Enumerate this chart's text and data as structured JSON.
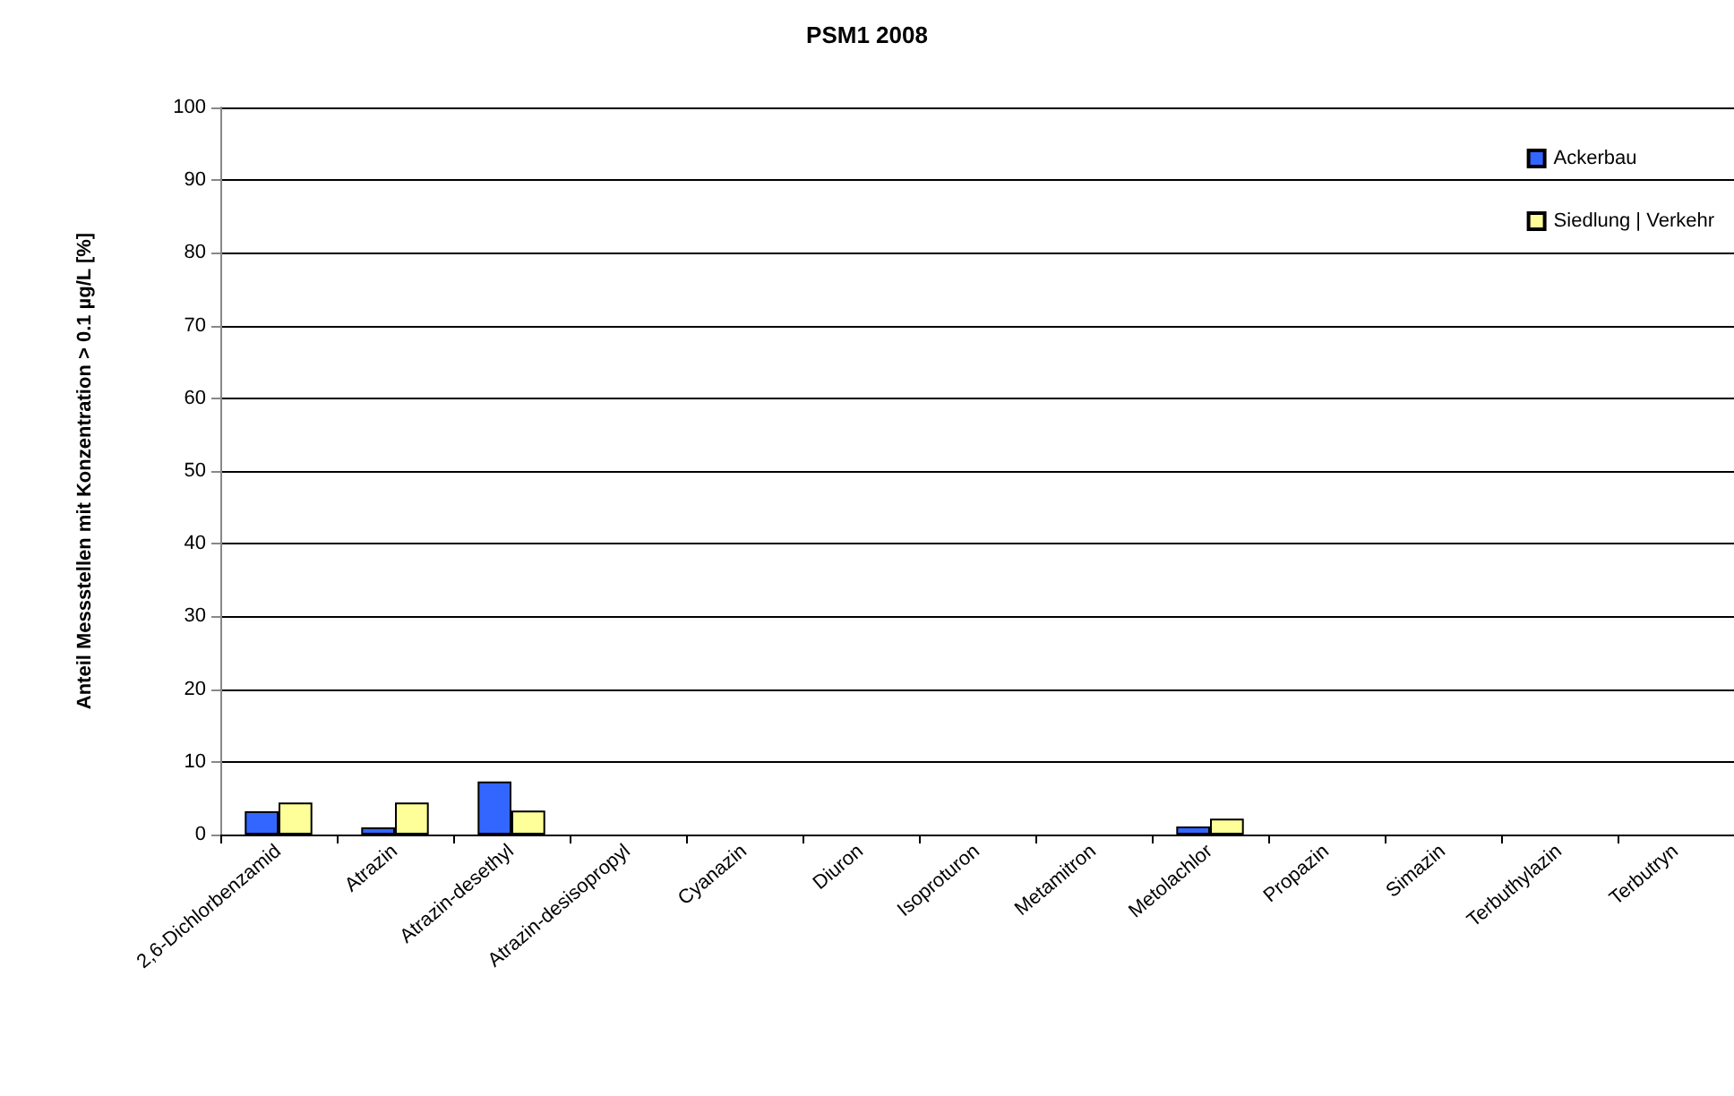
{
  "chart_data": {
    "type": "bar",
    "title": "PSM1 2008",
    "ylabel": "Anteil Messstellen mit Konzentration > 0.1 µg/L [%]",
    "categories": [
      "2,6-Dichlorbenzamid",
      "Atrazin",
      "Atrazin-desethyl",
      "Atrazin-desisopropyl",
      "Cyanazin",
      "Diuron",
      "Isoproturon",
      "Metamitron",
      "Metolachlor",
      "Propazin",
      "Simazin",
      "Terbuthylazin",
      "Terbutryn"
    ],
    "series": [
      {
        "name": "Ackerbau",
        "color": "#3366ff",
        "values": [
          3.2,
          1.0,
          7.3,
          0,
          0,
          0,
          0,
          0,
          1.1,
          0,
          0,
          0,
          0
        ]
      },
      {
        "name": "Siedlung | Verkehr",
        "color": "#ffff99",
        "values": [
          4.4,
          4.4,
          3.3,
          0,
          0,
          0,
          0,
          0,
          2.2,
          0,
          0,
          0,
          0
        ]
      }
    ],
    "ylim": [
      0,
      100
    ],
    "yticks": [
      0,
      10,
      20,
      30,
      40,
      50,
      60,
      70,
      80,
      90,
      100
    ],
    "grid": "y",
    "legend": "top right"
  }
}
